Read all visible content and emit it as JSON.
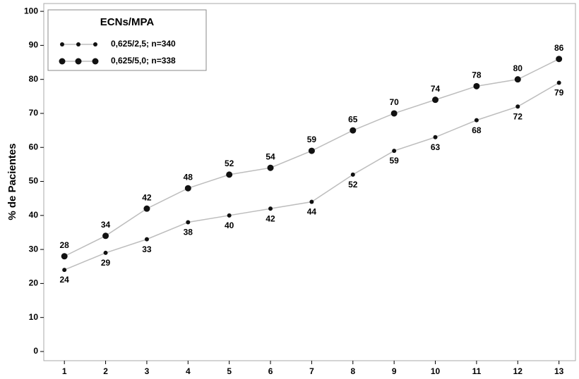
{
  "chart_data": {
    "type": "line",
    "y_label": "% de Pacientes",
    "legend_title": "ECNs/MPA",
    "x": [
      1,
      2,
      3,
      4,
      5,
      6,
      7,
      8,
      9,
      10,
      11,
      12,
      13
    ],
    "xlim": [
      0.5,
      13.4
    ],
    "xticks": [
      1,
      2,
      3,
      4,
      5,
      6,
      7,
      8,
      9,
      10,
      11,
      12,
      13
    ],
    "ylim": [
      -2.7,
      102.3
    ],
    "yticks": [
      0,
      10,
      20,
      30,
      40,
      50,
      60,
      70,
      80,
      90,
      100
    ],
    "legend": "upper-left",
    "line_color": "#bdbdbd",
    "series": [
      {
        "name": "0,625/2,5; n=340",
        "color": "#111111",
        "marker_size": 3,
        "values": [
          24,
          29,
          33,
          38,
          40,
          42,
          44,
          52,
          59,
          63,
          68,
          72,
          79
        ]
      },
      {
        "name": "0,625/5,0; n=338",
        "color": "#111111",
        "marker_size": 4.5,
        "values": [
          28,
          34,
          42,
          48,
          52,
          54,
          59,
          65,
          70,
          74,
          78,
          80,
          86
        ]
      }
    ]
  }
}
